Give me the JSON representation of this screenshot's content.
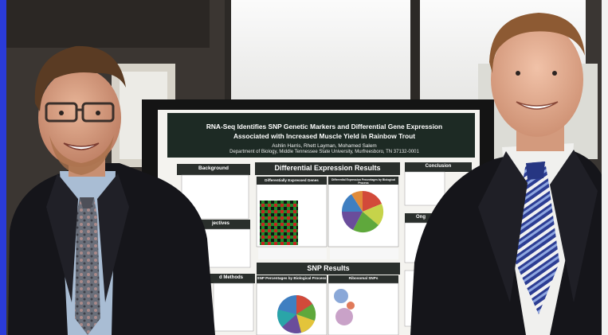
{
  "poster": {
    "title_line1": "RNA-Seq Identifies SNP Genetic Markers and Differential Gene Expression",
    "title_line2": "Associated with Increased Muscle Yield in Rainbow Trout",
    "authors": "Ashlin Harris, Rhett Layman, Mohamed Salem",
    "department": "Department of Biology, Middle Tennessee State University, Murfreesboro, TN 37132-0001",
    "sections": {
      "background": "Background",
      "objectives": "jectives",
      "methods": "d Methods",
      "differential_expression": "Differential Expression Results",
      "diff_expressed_genes": "Differentially Expressed Genes",
      "diff_expression_percentages": "Differential Expression Percentages by Biological Process",
      "snp_results": "SNP Results",
      "snp_percentages": "SNP Percentages by Biological Process",
      "ribosomal_snps": "Ribosomal SNPs",
      "conclusion": "Conclusion",
      "ongoing": "Ong"
    }
  },
  "colors": {
    "poster_header": "#1d2a24",
    "pie_blue": "#3f7fc1",
    "pie_green": "#5fa83c",
    "pie_red": "#d24a3a",
    "pie_purple": "#6a4d9b",
    "suit": "#15151a",
    "frame": "#2a3bd8"
  }
}
